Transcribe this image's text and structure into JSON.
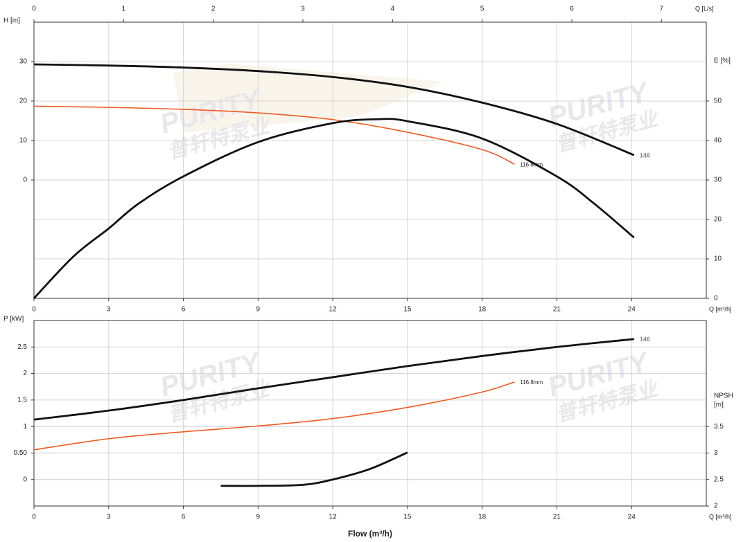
{
  "chart_data": [
    {
      "type": "line",
      "xlabel": "Q [m³/h]",
      "xlim": [
        0,
        27
      ],
      "xticks": [
        0,
        3,
        6,
        9,
        12,
        15,
        18,
        21,
        24
      ],
      "x2label": "Q [L/s]",
      "x2lim": [
        0,
        7.5
      ],
      "x2ticks": [
        0,
        1,
        2,
        3,
        4,
        5,
        6,
        7
      ],
      "ylabel": "H [m]",
      "ylim": [
        -30,
        40
      ],
      "yticks": [
        0,
        10,
        20,
        30
      ],
      "y2label": "E [%]",
      "y2lim": [
        0,
        70
      ],
      "y2ticks": [
        0,
        10,
        20,
        30,
        40,
        50
      ],
      "grid": true,
      "series": [
        {
          "name": "146",
          "color": "#111111",
          "x": [
            0,
            3,
            6,
            9,
            12,
            15,
            18,
            21,
            24.1
          ],
          "values": [
            29.3,
            29.0,
            28.5,
            27.6,
            26.1,
            23.6,
            19.6,
            14.2,
            6.3
          ]
        },
        {
          "name": "116.8mm",
          "color": "#f05a22",
          "x": [
            0,
            3,
            6,
            9,
            12,
            15,
            18,
            19.3
          ],
          "values": [
            18.7,
            18.4,
            17.9,
            17.0,
            15.3,
            12.1,
            7.7,
            4.0
          ]
        },
        {
          "color": "#111111",
          "axis": "y2",
          "x": [
            0,
            1.6,
            3,
            4.2,
            6,
            9,
            12,
            13.8,
            15,
            18,
            21,
            22.5,
            24.1
          ],
          "values": [
            0,
            10.7,
            17.7,
            24,
            30.9,
            39.6,
            44.4,
            45.4,
            44.9,
            40.5,
            30.9,
            24,
            15.4
          ]
        }
      ]
    },
    {
      "type": "line",
      "xlabel": "Q [m³/h]",
      "xlim": [
        0,
        27
      ],
      "xticks": [
        0,
        3,
        6,
        9,
        12,
        15,
        18,
        21,
        24
      ],
      "xtitle": "Flow (m³/h)",
      "ylabel": "P [kW]",
      "ylim": [
        -0.5,
        3
      ],
      "yticks": [
        0,
        {
          "value": 0.5,
          "label": "0.50"
        },
        1,
        1.5,
        2,
        2.5
      ],
      "y2label": [
        "NPSH",
        "[m]"
      ],
      "y2lim": [
        2,
        5.5
      ],
      "y2ticks": [
        2,
        2.5,
        3,
        3.5
      ],
      "grid": true,
      "series": [
        {
          "name": "146",
          "color": "#111111",
          "x": [
            0,
            3,
            6,
            9,
            12,
            15,
            18,
            21,
            24.1
          ],
          "values": [
            1.13,
            1.3,
            1.5,
            1.72,
            1.93,
            2.14,
            2.33,
            2.5,
            2.65
          ]
        },
        {
          "name": "116.8mm",
          "color": "#f05a22",
          "x": [
            0,
            3,
            6,
            9,
            12,
            15,
            18,
            19.3
          ],
          "values": [
            0.56,
            0.77,
            0.9,
            1.01,
            1.15,
            1.36,
            1.65,
            1.84
          ]
        },
        {
          "color": "#111111",
          "axis": "y2",
          "x": [
            7.5,
            9,
            10.8,
            12,
            13.5,
            15
          ],
          "values": [
            2.38,
            2.38,
            2.4,
            2.5,
            2.7,
            3.01
          ]
        }
      ]
    }
  ],
  "watermark": {
    "brand": "PURITY",
    "cn": "普轩特泵业"
  }
}
